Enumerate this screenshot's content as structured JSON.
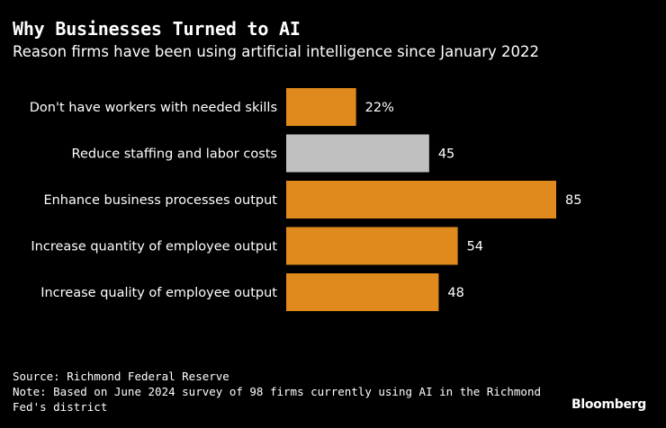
{
  "title": "Why Businesses Turned to AI",
  "subtitle": "Reason firms have been using artificial intelligence since January 2022",
  "source": "Source: Richmond Federal Reserve",
  "note": "Note: Based on June 2024 survey of 98 firms currently using AI in the Richmond Fed's district",
  "brand": "Bloomberg",
  "colors": {
    "background": "#000000",
    "accent_bar": "#E08A1E",
    "highlight_bar": "#C0C0C0",
    "text": "#FFFFFF"
  },
  "chart_data": {
    "type": "bar",
    "orientation": "horizontal",
    "title": "Why Businesses Turned to AI",
    "subtitle": "Reason firms have been using artificial intelligence since January 2022",
    "unit": "%",
    "categories": [
      "Don't have workers with needed skills",
      "Reduce staffing and labor costs",
      "Enhance business processes output",
      "Increase quantity of employee output",
      "Increase quality of employee output"
    ],
    "values": [
      22,
      45,
      85,
      54,
      48
    ],
    "value_labels": [
      "22%",
      "45",
      "85",
      "54",
      "48"
    ],
    "bar_colors": [
      "#E08A1E",
      "#C0C0C0",
      "#E08A1E",
      "#E08A1E",
      "#E08A1E"
    ],
    "xlim": [
      0,
      85
    ],
    "grid": false,
    "legend": "none"
  }
}
